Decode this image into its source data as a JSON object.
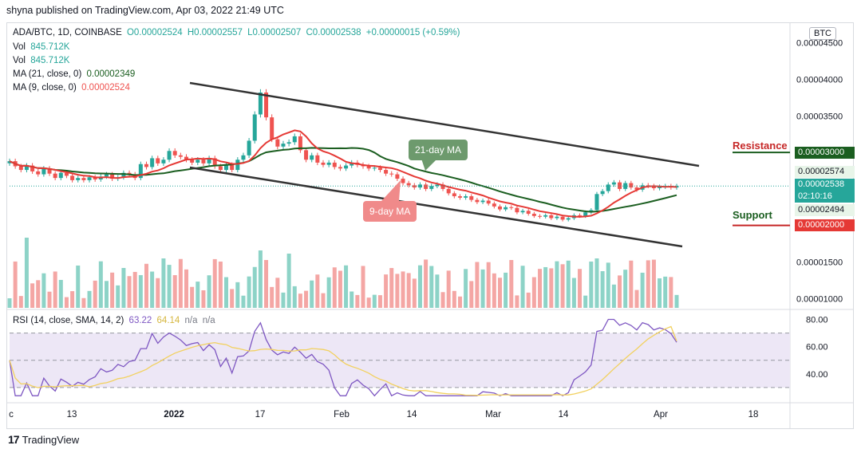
{
  "header": {
    "published": "shyna published on TradingView.com, Apr 03, 2022 21:49 UTC"
  },
  "legend": {
    "symbol": "ADA/BTC, 1D, COINBASE",
    "o": "O0.00002524",
    "h": "H0.00002557",
    "l": "L0.00002507",
    "c": "C0.00002538",
    "change": "+0.00000015 (+0.59%)",
    "vol1_label": "Vol",
    "vol1_value": "845.712K",
    "vol2_label": "Vol",
    "vol2_value": "845.712K",
    "ma21_label": "MA (21, close, 0)",
    "ma21_value": "0.00002349",
    "ma9_label": "MA (9, close, 0)",
    "ma9_value": "0.00002524",
    "rsi_label": "RSI (14, close, SMA, 14, 2)",
    "rsi_value": "63.22",
    "rsi_sma_value": "64.14",
    "na1": "n/a",
    "na2": "n/a"
  },
  "axis": {
    "currency": "BTC",
    "price_ticks": [
      "0.00004500",
      "0.00004000",
      "0.00003500",
      "0.00001500",
      "0.00001000"
    ],
    "rsi_ticks": [
      "80.00",
      "60.00",
      "40.00"
    ],
    "x_ticks": [
      "c",
      "13",
      "2022",
      "17",
      "Feb",
      "14",
      "Mar",
      "14",
      "Apr",
      "18"
    ]
  },
  "price_tags": {
    "resistance": "0.00003000",
    "high": "0.00002574",
    "last": "0.00002538",
    "countdown": "02:10:16",
    "low": "0.00002494",
    "support": "0.00002000"
  },
  "annotations": {
    "resistance": "Resistance",
    "support": "Support",
    "ma21_callout": "21-day MA",
    "ma9_callout": "9-day MA"
  },
  "branding": {
    "logo_text": "TradingView",
    "logo_icon": "tradingview-logo-icon"
  },
  "colors": {
    "up": "#26a69a",
    "down": "#ef5350",
    "ma21": "#1b5e20",
    "ma9": "#e53935",
    "rsi_line": "#7e57c2",
    "rsi_sma": "#f2d15f",
    "rsi_band": "#ede7f6",
    "resistance": "#1b5e20",
    "support": "#c62828",
    "channel": "#333333"
  },
  "chart_data": {
    "type": "candlestick",
    "symbol": "ADA/BTC",
    "timeframe": "1D",
    "y_range": [
      8.5e-06,
      4.65e-05
    ],
    "resistance_level": 3e-05,
    "support_level": 2e-05,
    "closes": [
      2.88e-05,
      2.81e-05,
      2.76e-05,
      2.82e-05,
      2.74e-05,
      2.7e-05,
      2.78e-05,
      2.71e-05,
      2.65e-05,
      2.72e-05,
      2.68e-05,
      2.62e-05,
      2.65e-05,
      2.62e-05,
      2.66e-05,
      2.63e-05,
      2.67e-05,
      2.7e-05,
      2.64e-05,
      2.66e-05,
      2.72e-05,
      2.7e-05,
      2.65e-05,
      2.84e-05,
      2.8e-05,
      2.92e-05,
      2.85e-05,
      2.9e-05,
      3.02e-05,
      2.96e-05,
      2.94e-05,
      2.9e-05,
      2.86e-05,
      2.9e-05,
      2.85e-05,
      2.92e-05,
      2.81e-05,
      2.76e-05,
      2.83e-05,
      2.76e-05,
      2.9e-05,
      2.96e-05,
      3.16e-05,
      3.52e-05,
      3.82e-05,
      3.48e-05,
      3.18e-05,
      3.08e-05,
      3.12e-05,
      3.14e-05,
      3.22e-05,
      3.03e-05,
      2.9e-05,
      2.96e-05,
      2.86e-05,
      2.83e-05,
      2.86e-05,
      2.8e-05,
      2.78e-05,
      2.82e-05,
      2.86e-05,
      2.83e-05,
      2.81e-05,
      2.78e-05,
      2.79e-05,
      2.76e-05,
      2.71e-05,
      2.7e-05,
      2.64e-05,
      2.58e-05,
      2.55e-05,
      2.52e-05,
      2.56e-05,
      2.5e-05,
      2.54e-05,
      2.56e-05,
      2.5e-05,
      2.44e-05,
      2.4e-05,
      2.38e-05,
      2.4e-05,
      2.35e-05,
      2.32e-05,
      2.34e-05,
      2.3e-05,
      2.26e-05,
      2.22e-05,
      2.25e-05,
      2.24e-05,
      2.18e-05,
      2.2e-05,
      2.16e-05,
      2.13e-05,
      2.12e-05,
      2.14e-05,
      2.1e-05,
      2.12e-05,
      2.08e-05,
      2.1e-05,
      2.14e-05,
      2.13e-05,
      2.18e-05,
      2.21e-05,
      2.43e-05,
      2.47e-05,
      2.56e-05,
      2.59e-05,
      2.5e-05,
      2.58e-05,
      2.52e-05,
      2.49e-05,
      2.55e-05,
      2.54e-05,
      2.51e-05,
      2.53e-05,
      2.54e-05,
      2.52e-05,
      2.54e-05
    ],
    "ma21": {
      "name": "21-day MA",
      "last": 2.349e-05
    },
    "ma9": {
      "name": "9-day MA",
      "last": 2.524e-05
    },
    "rsi": {
      "last": 63.22,
      "sma_last": 64.14,
      "y_range": [
        20,
        85
      ],
      "bands": [
        70,
        30
      ]
    },
    "x_ticks": [
      "c",
      "13",
      "2022",
      "17",
      "Feb",
      "14",
      "Mar",
      "14",
      "Apr",
      "18"
    ]
  }
}
